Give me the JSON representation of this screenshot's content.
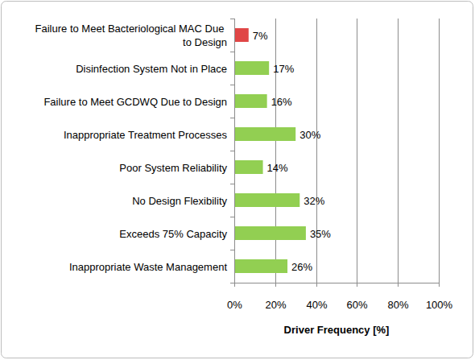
{
  "chart_data": {
    "type": "bar",
    "orientation": "horizontal",
    "categories": [
      "Failure to Meet Bacteriological MAC Due to Design",
      "Disinfection System Not in Place",
      "Failure to Meet GCDWQ Due to Design",
      "Inappropriate Treatment Processes",
      "Poor System Reliability",
      "No Design Flexibility",
      "Exceeds 75% Capacity",
      "Inappropriate Waste Management"
    ],
    "values": [
      7,
      17,
      16,
      30,
      14,
      32,
      35,
      26
    ],
    "value_labels": [
      "7%",
      "17%",
      "16%",
      "30%",
      "14%",
      "32%",
      "35%",
      "26%"
    ],
    "data_labels": true,
    "colors": [
      "#e04646",
      "#92cf52",
      "#92cf52",
      "#92cf52",
      "#92cf52",
      "#92cf52",
      "#92cf52",
      "#92cf52"
    ],
    "x_label": "Driver Frequency [%]",
    "xlim": [
      0,
      100
    ],
    "xticks": [
      {
        "value": 0,
        "label": "0%"
      },
      {
        "value": 20,
        "label": "20%"
      },
      {
        "value": 40,
        "label": "40%"
      },
      {
        "value": 60,
        "label": "60%"
      },
      {
        "value": 80,
        "label": "80%"
      },
      {
        "value": 100,
        "label": "100%"
      }
    ],
    "grid": true
  }
}
